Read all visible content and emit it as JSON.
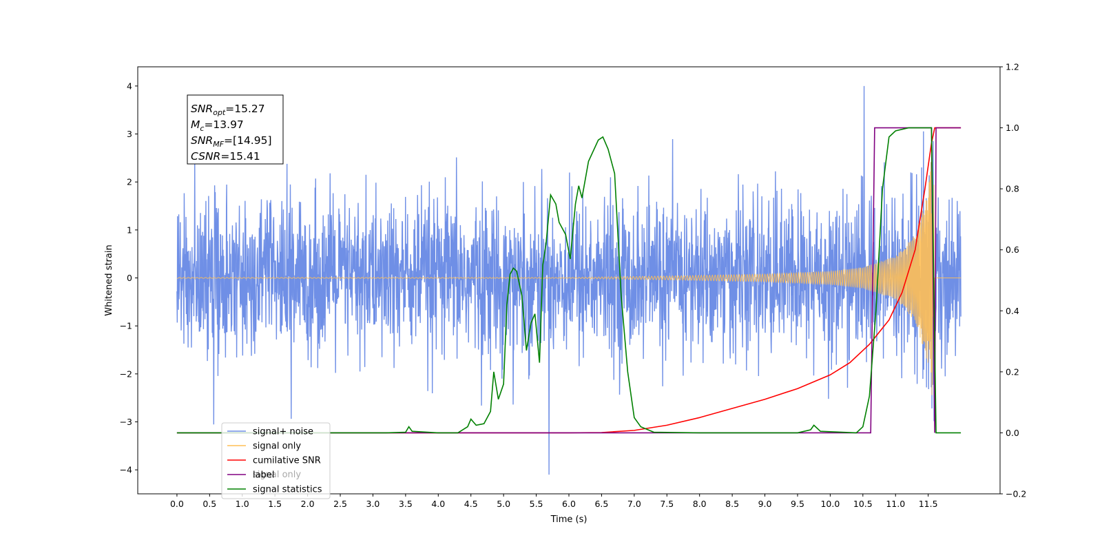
{
  "chart_data": {
    "type": "line",
    "xlabel": "Time (s)",
    "ylabel": "Whitened strain",
    "xlim": [
      -0.6,
      12.6
    ],
    "ylim": [
      -4.5,
      4.4
    ],
    "y2lim": [
      -0.2,
      1.2
    ],
    "x_ticks": [
      "0.0",
      "0.5",
      "1.0",
      "1.5",
      "2.0",
      "2.5",
      "3.0",
      "3.5",
      "4.0",
      "4.5",
      "5.0",
      "5.5",
      "6.0",
      "6.5",
      "7.0",
      "7.5",
      "8.0",
      "8.5",
      "9.0",
      "9.5",
      "10.0",
      "10.5",
      "11.0",
      "11.5"
    ],
    "y_ticks": [
      "4",
      "3",
      "2",
      "1",
      "0",
      "−1",
      "−2",
      "−3",
      "−4"
    ],
    "y2_ticks": [
      "1.2",
      "1.0",
      "0.8",
      "0.6",
      "0.4",
      "0.2",
      "0.0",
      "−0.2"
    ],
    "annotation": {
      "snr_opt": {
        "sym": "SNR",
        "sub": "opt",
        "val": "=15.27"
      },
      "mc": {
        "sym": "M",
        "sub": "c",
        "val": "=13.97"
      },
      "snr_mf": {
        "sym": "SNR",
        "sub": "MF",
        "val": "=[14.95]"
      },
      "csnr": {
        "sym": "CSNR",
        "sub": "",
        "val": "=15.41"
      }
    },
    "legend": {
      "placement": "lower-left",
      "items": [
        {
          "label": "signal+ noise",
          "color": "#6f8fe6"
        },
        {
          "label": "signal only",
          "color": "#ffbf55"
        },
        {
          "label": "cumilative SNR",
          "color": "#ff0000"
        },
        {
          "label": "label",
          "color": "#800080"
        },
        {
          "label": "signal statistics",
          "color": "#008000"
        }
      ],
      "hidden_behind_text": "signal only"
    },
    "series": [
      {
        "name": "signal+ noise",
        "axis": "left",
        "color": "#6f8fe6",
        "x_range": [
          0.0,
          12.0
        ],
        "envelope_typical": [
          -1.9,
          2.2
        ],
        "extremes": [
          -4.1,
          4.0
        ]
      },
      {
        "name": "signal only",
        "axis": "left",
        "color": "#ffbf55",
        "x_range": [
          0.0,
          12.0
        ],
        "merger_time": 11.6,
        "amplitude_points": [
          [
            0.0,
            0.01
          ],
          [
            6.0,
            0.01
          ],
          [
            7.5,
            0.04
          ],
          [
            9.0,
            0.08
          ],
          [
            10.0,
            0.14
          ],
          [
            10.5,
            0.22
          ],
          [
            11.0,
            0.45
          ],
          [
            11.3,
            0.9
          ],
          [
            11.5,
            1.8
          ],
          [
            11.58,
            3.0
          ],
          [
            11.6,
            0.0
          ]
        ]
      },
      {
        "name": "cumilative SNR",
        "axis": "right",
        "color": "#ff0000",
        "points": [
          [
            0.0,
            0.0
          ],
          [
            6.0,
            0.0
          ],
          [
            6.5,
            0.001
          ],
          [
            7.0,
            0.008
          ],
          [
            7.5,
            0.025
          ],
          [
            8.0,
            0.05
          ],
          [
            8.5,
            0.08
          ],
          [
            9.0,
            0.11
          ],
          [
            9.5,
            0.145
          ],
          [
            10.0,
            0.19
          ],
          [
            10.3,
            0.23
          ],
          [
            10.6,
            0.29
          ],
          [
            10.9,
            0.37
          ],
          [
            11.1,
            0.46
          ],
          [
            11.3,
            0.6
          ],
          [
            11.45,
            0.8
          ],
          [
            11.55,
            0.95
          ],
          [
            11.6,
            1.0
          ],
          [
            12.0,
            1.0
          ]
        ]
      },
      {
        "name": "label",
        "axis": "right",
        "color": "#800080",
        "points": [
          [
            0.0,
            0.0
          ],
          [
            10.62,
            0.0
          ],
          [
            10.68,
            1.0
          ],
          [
            11.55,
            1.0
          ],
          [
            11.6,
            0.0
          ],
          [
            11.62,
            1.0
          ],
          [
            12.0,
            1.0
          ]
        ]
      },
      {
        "name": "signal statistics",
        "axis": "right",
        "color": "#008000",
        "points": [
          [
            0.0,
            0.0
          ],
          [
            2.5,
            0.0
          ],
          [
            3.2,
            0.0
          ],
          [
            3.5,
            0.002
          ],
          [
            3.55,
            0.02
          ],
          [
            3.6,
            0.005
          ],
          [
            4.0,
            0.0
          ],
          [
            4.3,
            0.0
          ],
          [
            4.45,
            0.02
          ],
          [
            4.5,
            0.045
          ],
          [
            4.58,
            0.025
          ],
          [
            4.7,
            0.03
          ],
          [
            4.8,
            0.07
          ],
          [
            4.85,
            0.2
          ],
          [
            4.92,
            0.11
          ],
          [
            5.0,
            0.16
          ],
          [
            5.05,
            0.42
          ],
          [
            5.1,
            0.52
          ],
          [
            5.15,
            0.54
          ],
          [
            5.2,
            0.53
          ],
          [
            5.28,
            0.45
          ],
          [
            5.35,
            0.27
          ],
          [
            5.42,
            0.36
          ],
          [
            5.48,
            0.39
          ],
          [
            5.55,
            0.23
          ],
          [
            5.6,
            0.55
          ],
          [
            5.65,
            0.62
          ],
          [
            5.72,
            0.78
          ],
          [
            5.8,
            0.75
          ],
          [
            5.85,
            0.69
          ],
          [
            5.95,
            0.65
          ],
          [
            6.02,
            0.57
          ],
          [
            6.1,
            0.75
          ],
          [
            6.15,
            0.81
          ],
          [
            6.2,
            0.77
          ],
          [
            6.3,
            0.89
          ],
          [
            6.45,
            0.96
          ],
          [
            6.52,
            0.97
          ],
          [
            6.6,
            0.93
          ],
          [
            6.7,
            0.85
          ],
          [
            6.8,
            0.45
          ],
          [
            6.9,
            0.2
          ],
          [
            7.0,
            0.05
          ],
          [
            7.1,
            0.02
          ],
          [
            7.3,
            0.002
          ],
          [
            8.0,
            0.0
          ],
          [
            9.5,
            0.0
          ],
          [
            9.7,
            0.01
          ],
          [
            9.75,
            0.025
          ],
          [
            9.85,
            0.005
          ],
          [
            10.4,
            0.0
          ],
          [
            10.5,
            0.02
          ],
          [
            10.55,
            0.07
          ],
          [
            10.6,
            0.12
          ],
          [
            10.7,
            0.4
          ],
          [
            10.8,
            0.8
          ],
          [
            10.9,
            0.97
          ],
          [
            11.0,
            0.99
          ],
          [
            11.2,
            1.0
          ],
          [
            11.55,
            1.0
          ],
          [
            11.62,
            0.0
          ],
          [
            12.0,
            0.0
          ]
        ]
      }
    ]
  }
}
